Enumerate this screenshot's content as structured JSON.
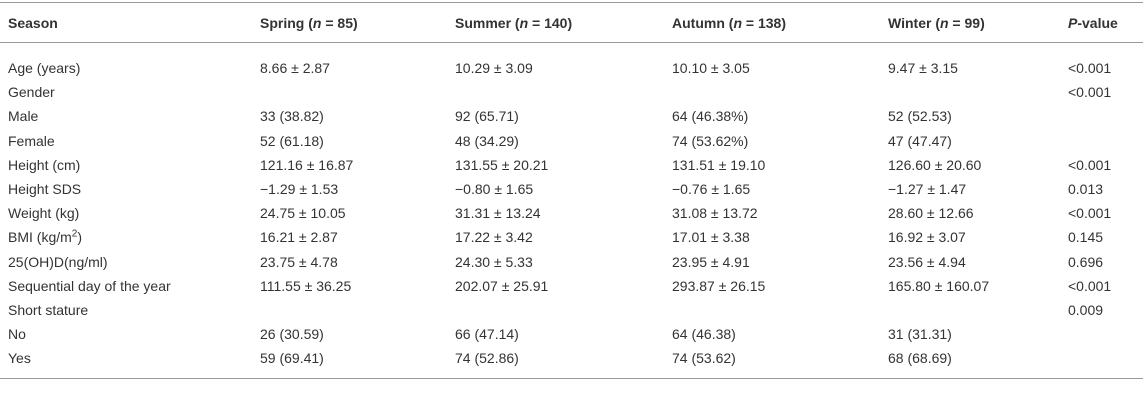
{
  "table": {
    "header": [
      "Season",
      {
        "text": "Spring (",
        "italic": "n",
        "tail": " = 85)"
      },
      {
        "text": "Summer (",
        "italic": "n",
        "tail": " = 140)"
      },
      {
        "text": "Autumn (",
        "italic": "n",
        "tail": " = 138)"
      },
      {
        "text": "Winter (",
        "italic": "n",
        "tail": " = 99)"
      },
      {
        "italic": "P",
        "tail": "-value"
      }
    ],
    "rows": [
      [
        "Age (years)",
        "8.66 ± 2.87",
        "10.29 ± 3.09",
        "10.10 ± 3.05",
        "9.47 ± 3.15",
        "<0.001"
      ],
      [
        "Gender",
        null,
        null,
        null,
        null,
        "<0.001"
      ],
      [
        "Male",
        "33 (38.82)",
        "92 (65.71)",
        "64 (46.38%)",
        "52 (52.53)",
        null
      ],
      [
        "Female",
        "52 (61.18)",
        "48 (34.29)",
        "74 (53.62%)",
        "47 (47.47)",
        null
      ],
      [
        "Height (cm)",
        "121.16 ± 16.87",
        "131.55 ± 20.21",
        "131.51 ± 19.10",
        "126.60 ± 20.60",
        "<0.001"
      ],
      [
        "Height SDS",
        "−1.29 ± 1.53",
        "−0.80 ± 1.65",
        "−0.76 ± 1.65",
        "−1.27 ± 1.47",
        "0.013"
      ],
      [
        "Weight (kg)",
        "24.75 ± 10.05",
        "31.31 ± 13.24",
        "31.08 ± 13.72",
        "28.60 ± 12.66",
        "<0.001"
      ],
      [
        {
          "text": "BMI (kg/m",
          "sup": "2",
          "tail": ")"
        },
        "16.21 ± 2.87",
        "17.22 ± 3.42",
        "17.01 ± 3.38",
        "16.92 ± 3.07",
        "0.145"
      ],
      [
        "25(OH)D(ng/ml)",
        "23.75 ± 4.78",
        "24.30 ± 5.33",
        "23.95 ± 4.91",
        "23.56 ± 4.94",
        "0.696"
      ],
      [
        "Sequential day of the year",
        "111.55 ± 36.25",
        "202.07 ± 25.91",
        "293.87 ± 26.15",
        "165.80 ± 160.07",
        "<0.001"
      ],
      [
        "Short stature",
        null,
        null,
        null,
        null,
        "0.009"
      ],
      [
        "No",
        "26 (30.59)",
        "66 (47.14)",
        "64 (46.38)",
        "31 (31.31)",
        null
      ],
      [
        "Yes",
        "59 (69.41)",
        "74 (52.86)",
        "74 (53.62)",
        "68 (68.69)",
        null
      ]
    ]
  }
}
